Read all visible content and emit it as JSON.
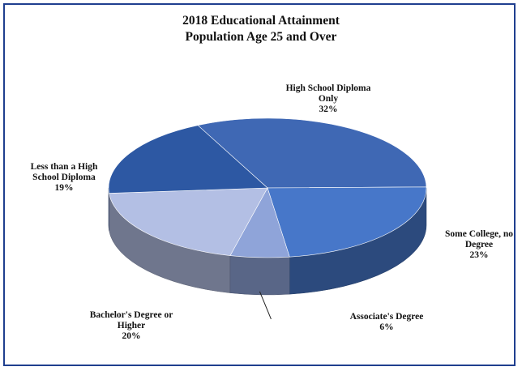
{
  "chart_data": {
    "type": "pie",
    "title": "2018 Educational Attainment",
    "subtitle": "Population Age 25 and Over",
    "slices": [
      {
        "label_lines": [
          "High School Diploma",
          "Only"
        ],
        "value_label": "32%",
        "value": 32,
        "color": "#3f68b4"
      },
      {
        "label_lines": [
          "Some College, no",
          "Degree"
        ],
        "value_label": "23%",
        "value": 23,
        "color": "#4777c9"
      },
      {
        "label_lines": [
          "Associate's Degree"
        ],
        "value_label": "6%",
        "value": 6,
        "color": "#8fa4d9"
      },
      {
        "label_lines": [
          "Bachelor's Degree or",
          "Higher"
        ],
        "value_label": "20%",
        "value": 20,
        "color": "#b3bfe4"
      },
      {
        "label_lines": [
          "Less than a High",
          "School Diploma"
        ],
        "value_label": "19%",
        "value": 19,
        "color": "#2d58a3"
      }
    ]
  }
}
